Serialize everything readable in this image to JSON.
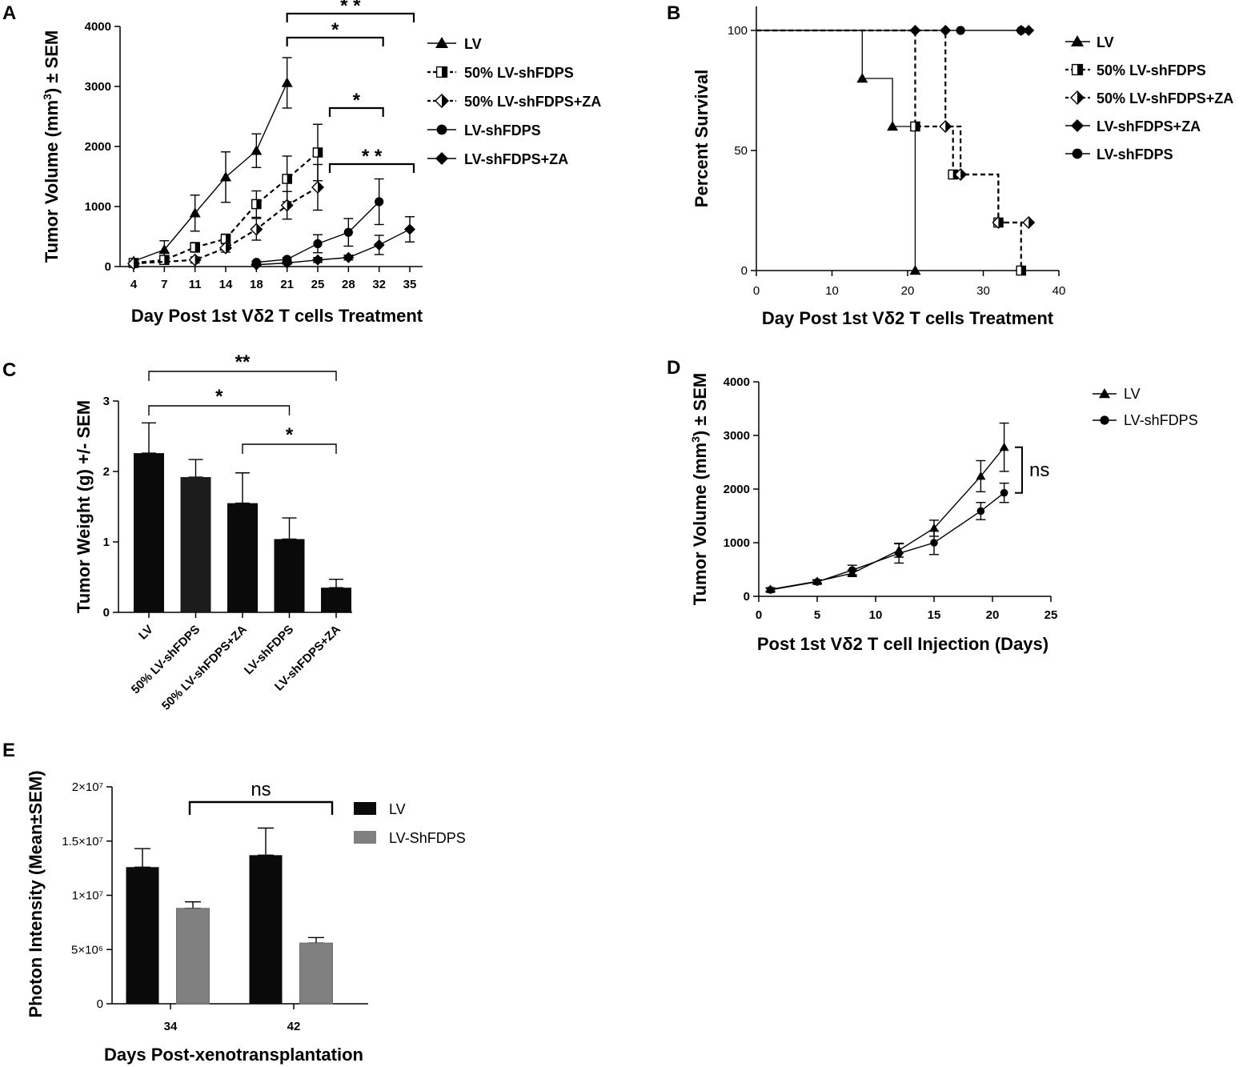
{
  "chart_data": [
    {
      "panel": "A",
      "type": "line",
      "xlabel": "Day Post 1st Vδ2 T cells Treatment",
      "ylabel_parts": [
        "Tumor Volume (mm",
        "3",
        ") ± SEM"
      ],
      "categories": [
        "4",
        "7",
        "11",
        "14",
        "18",
        "21",
        "25",
        "28",
        "32",
        "35"
      ],
      "ylim": [
        0,
        4000
      ],
      "yticks": [
        "0",
        "1000",
        "2000",
        "3000",
        "4000"
      ],
      "series": [
        {
          "name": "LV",
          "marker": "triangle",
          "dash": false,
          "points": [
            [
              0,
              90,
              20
            ],
            [
              1,
              280,
              150
            ],
            [
              2,
              890,
              300
            ],
            [
              3,
              1490,
              420
            ],
            [
              4,
              1930,
              280
            ],
            [
              5,
              3060,
              420
            ]
          ]
        },
        {
          "name": "50% LV-shFDPS",
          "marker": "half-square",
          "dash": true,
          "points": [
            [
              0,
              60,
              20
            ],
            [
              1,
              110,
              60
            ],
            [
              2,
              320,
              80
            ],
            [
              3,
              460,
              80
            ],
            [
              4,
              1040,
              220
            ],
            [
              5,
              1460,
              380
            ],
            [
              6,
              1900,
              470
            ]
          ]
        },
        {
          "name": "50% LV-shFDPS+ZA",
          "marker": "half-diamond",
          "dash": true,
          "points": [
            [
              0,
              50,
              20
            ],
            [
              2,
              110,
              50
            ],
            [
              3,
              310,
              70
            ],
            [
              4,
              620,
              180
            ],
            [
              5,
              1020,
              230
            ],
            [
              6,
              1320,
              380
            ]
          ]
        },
        {
          "name": "LV-shFDPS",
          "marker": "circle",
          "dash": false,
          "points": [
            [
              4,
              70,
              20
            ],
            [
              5,
              120,
              30
            ],
            [
              6,
              380,
              150
            ],
            [
              7,
              570,
              230
            ],
            [
              8,
              1080,
              380
            ]
          ]
        },
        {
          "name": "LV-shFDPS+ZA",
          "marker": "diamond",
          "dash": false,
          "points": [
            [
              4,
              30,
              10
            ],
            [
              5,
              60,
              20
            ],
            [
              6,
              110,
              40
            ],
            [
              7,
              150,
              40
            ],
            [
              8,
              360,
              160
            ],
            [
              9,
              620,
              210
            ]
          ]
        }
      ],
      "significance": [
        {
          "label": "* *",
          "from": "21",
          "to": "35"
        },
        {
          "label": "*",
          "from": "21",
          "to": "32"
        },
        {
          "label": "*",
          "from": "25",
          "to": "32"
        },
        {
          "label": "* *",
          "from": "25",
          "to": "35"
        }
      ]
    },
    {
      "panel": "B",
      "type": "line",
      "xlabel": "Day Post 1st Vδ2 T cells Treatment",
      "ylabel": "Percent Survival",
      "xlim": [
        0,
        40
      ],
      "xticks": [
        "0",
        "10",
        "20",
        "30",
        "40"
      ],
      "ylim": [
        0,
        100
      ],
      "yticks": [
        "0",
        "50",
        "100"
      ],
      "series": [
        {
          "name": "LV",
          "marker": "triangle",
          "dash": false,
          "steps": [
            [
              0,
              100
            ],
            [
              14,
              80
            ],
            [
              18,
              60
            ],
            [
              21,
              0
            ]
          ],
          "markers": [
            [
              14,
              80
            ],
            [
              18,
              60
            ],
            [
              21,
              0
            ]
          ]
        },
        {
          "name": "50% LV-shFDPS",
          "marker": "half-square",
          "dash": true,
          "steps": [
            [
              0,
              100
            ],
            [
              21,
              60
            ],
            [
              26,
              40
            ],
            [
              32,
              20
            ],
            [
              35,
              0
            ]
          ],
          "markers": [
            [
              21,
              60
            ],
            [
              26,
              40
            ],
            [
              32,
              20
            ],
            [
              35,
              0
            ]
          ]
        },
        {
          "name": "50% LV-shFDPS+ZA",
          "marker": "half-diamond",
          "dash": true,
          "steps": [
            [
              0,
              100
            ],
            [
              25,
              60
            ],
            [
              27,
              40
            ],
            [
              32,
              20
            ],
            [
              36,
              20
            ]
          ],
          "markers": [
            [
              25,
              60
            ],
            [
              27,
              40
            ],
            [
              32,
              20
            ],
            [
              36,
              20
            ]
          ]
        },
        {
          "name": "LV-shFDPS+ZA",
          "marker": "diamond",
          "dash": false,
          "steps": [
            [
              0,
              100
            ],
            [
              36,
              100
            ]
          ],
          "markers": [
            [
              21,
              100
            ],
            [
              25,
              100
            ],
            [
              35,
              100
            ],
            [
              36,
              100
            ]
          ]
        },
        {
          "name": "LV-shFDPS",
          "marker": "circle",
          "dash": false,
          "steps": [
            [
              0,
              100
            ],
            [
              36,
              100
            ]
          ],
          "markers": [
            [
              27,
              100
            ],
            [
              35,
              100
            ]
          ]
        }
      ]
    },
    {
      "panel": "C",
      "type": "bar",
      "ylabel": "Tumor  Weight (g)  +/-  SEM",
      "categories": [
        "LV",
        "50% LV-shFDPS",
        "50% LV-shFDPS+ZA",
        "LV-shFDPS",
        "LV-shFDPS+ZA"
      ],
      "values": [
        2.26,
        1.92,
        1.55,
        1.04,
        0.35
      ],
      "errors": [
        0.43,
        0.25,
        0.43,
        0.3,
        0.12
      ],
      "ylim": [
        0,
        3
      ],
      "yticks": [
        "0",
        "1",
        "2",
        "3"
      ],
      "significance": [
        {
          "label": "**",
          "from": 0,
          "to": 4
        },
        {
          "label": "*",
          "from": 0,
          "to": 3
        },
        {
          "label": "*",
          "from": 2,
          "to": 4
        }
      ]
    },
    {
      "panel": "D",
      "type": "line",
      "xlabel": "Post 1st Vδ2 T cell Injection (Days)",
      "ylabel_parts": [
        "Tumor Volume (mm",
        "3",
        ") ± SEM"
      ],
      "xlim": [
        0,
        25
      ],
      "xticks": [
        "0",
        "5",
        "10",
        "15",
        "20",
        "25"
      ],
      "ylim": [
        0,
        4000
      ],
      "yticks": [
        "0",
        "1000",
        "2000",
        "3000",
        "4000"
      ],
      "series": [
        {
          "name": "LV",
          "marker": "triangle",
          "points": [
            [
              1,
              130,
              30
            ],
            [
              5,
              280,
              30
            ],
            [
              8,
              430,
              60
            ],
            [
              12,
              860,
              130
            ],
            [
              15,
              1270,
              150
            ],
            [
              19,
              2240,
              290
            ],
            [
              21,
              2780,
              450
            ]
          ]
        },
        {
          "name": "LV-shFDPS",
          "marker": "circle",
          "points": [
            [
              1,
              120,
              30
            ],
            [
              5,
              270,
              30
            ],
            [
              8,
              490,
              90
            ],
            [
              12,
              800,
              180
            ],
            [
              15,
              1000,
              220
            ],
            [
              19,
              1590,
              160
            ],
            [
              21,
              1930,
              180
            ]
          ]
        }
      ],
      "significance_label": "ns"
    },
    {
      "panel": "E",
      "type": "bar",
      "xlabel": "Days Post-xenotransplantation",
      "ylabel": "Photon Intensity (Mean±SEM)",
      "categories": [
        "34",
        "42"
      ],
      "ylim": [
        0,
        20000000
      ],
      "yticks": [
        "0",
        "5×10⁶",
        "1×10⁷",
        "1.5×10⁷",
        "2×10⁷"
      ],
      "series": [
        {
          "name": "LV",
          "color": "#0a0a0a",
          "values": [
            12600000,
            13700000
          ],
          "errors": [
            1700000,
            2500000
          ]
        },
        {
          "name": "LV-ShFDPS",
          "color": "#808080",
          "values": [
            8800000,
            5600000
          ],
          "errors": [
            600000,
            500000
          ]
        }
      ],
      "significance_label": "ns"
    }
  ],
  "panel_labels": [
    "A",
    "B",
    "C",
    "D",
    "E"
  ],
  "colors": {
    "ink": "#000000",
    "bar_black": "#0a0a0a",
    "bar_gray": "#808080",
    "bar_gray_edge": "#6d6d6d"
  }
}
